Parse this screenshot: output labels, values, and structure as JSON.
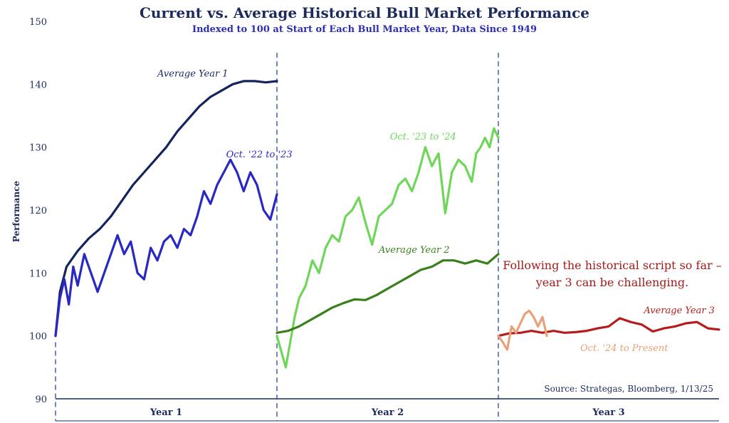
{
  "chart_data": {
    "type": "line",
    "title": "Current vs. Average Historical Bull Market Performance",
    "subtitle": "Indexed to 100 at Start of Each Bull Market Year, Data Since 1949",
    "ylabel": "Performance",
    "ylim": [
      90,
      150
    ],
    "yticks": [
      90,
      100,
      110,
      120,
      130,
      140,
      150
    ],
    "periods": [
      "Year 1",
      "Year 2",
      "Year 3"
    ],
    "annotation": "Following the historical script so far – year 3 can be challenging.",
    "source": "Source: Strategas, Bloomberg, 1/13/25",
    "x_note": "x = fraction of the bull-market year elapsed (0 to 1)",
    "series": [
      {
        "name": "Average Year 1",
        "period": 0,
        "color": "#16245e",
        "x": [
          0,
          0.02,
          0.05,
          0.1,
          0.15,
          0.2,
          0.25,
          0.3,
          0.35,
          0.4,
          0.45,
          0.5,
          0.55,
          0.6,
          0.65,
          0.7,
          0.75,
          0.8,
          0.85,
          0.9,
          0.95,
          1.0
        ],
        "y": [
          100,
          107,
          111,
          113.5,
          115.5,
          117,
          119,
          121.5,
          124,
          126,
          128,
          130,
          132.5,
          134.5,
          136.5,
          138,
          139,
          140,
          140.5,
          140.5,
          140.3,
          140.5
        ]
      },
      {
        "name": "Oct. '22 to '23",
        "period": 0,
        "color": "#2a28c2",
        "x": [
          0,
          0.02,
          0.04,
          0.06,
          0.08,
          0.1,
          0.13,
          0.16,
          0.19,
          0.22,
          0.25,
          0.28,
          0.31,
          0.34,
          0.37,
          0.4,
          0.43,
          0.46,
          0.49,
          0.52,
          0.55,
          0.58,
          0.61,
          0.64,
          0.67,
          0.7,
          0.73,
          0.76,
          0.79,
          0.82,
          0.85,
          0.88,
          0.91,
          0.94,
          0.97,
          1.0
        ],
        "y": [
          100,
          106,
          109,
          105,
          111,
          108,
          113,
          110,
          107,
          110,
          113,
          116,
          113,
          115,
          110,
          109,
          114,
          112,
          115,
          116,
          114,
          117,
          116,
          119,
          123,
          121,
          124,
          126,
          128,
          126,
          123,
          126,
          124,
          120,
          118.5,
          122.5
        ]
      },
      {
        "name": "Oct. '23 to '24",
        "period": 1,
        "color": "#6fd65a",
        "x": [
          0,
          0.02,
          0.04,
          0.06,
          0.08,
          0.1,
          0.13,
          0.16,
          0.19,
          0.22,
          0.25,
          0.28,
          0.31,
          0.34,
          0.37,
          0.4,
          0.43,
          0.46,
          0.49,
          0.52,
          0.55,
          0.58,
          0.61,
          0.64,
          0.67,
          0.7,
          0.73,
          0.76,
          0.79,
          0.82,
          0.85,
          0.88,
          0.9,
          0.92,
          0.94,
          0.96,
          0.98,
          1.0
        ],
        "y": [
          100,
          97.5,
          95,
          99,
          103,
          106,
          108,
          112,
          110,
          114,
          116,
          115,
          119,
          120,
          122,
          118,
          114.5,
          119,
          120,
          121,
          124,
          125,
          123,
          126,
          130,
          127,
          129,
          119.5,
          126,
          128,
          127,
          124.5,
          129,
          130,
          131.5,
          130,
          133,
          131.5
        ]
      },
      {
        "name": "Average Year 2",
        "period": 1,
        "color": "#3a7f1c",
        "x": [
          0,
          0.05,
          0.1,
          0.15,
          0.2,
          0.25,
          0.3,
          0.35,
          0.4,
          0.45,
          0.5,
          0.55,
          0.6,
          0.65,
          0.7,
          0.75,
          0.8,
          0.85,
          0.9,
          0.95,
          1.0
        ],
        "y": [
          100.5,
          100.8,
          101.5,
          102.5,
          103.5,
          104.5,
          105.2,
          105.8,
          105.7,
          106.5,
          107.5,
          108.5,
          109.5,
          110.5,
          111,
          112,
          112,
          111.5,
          112,
          111.5,
          113
        ]
      },
      {
        "name": "Average Year 3",
        "period": 2,
        "color": "#b71c1c",
        "x": [
          0,
          0.05,
          0.1,
          0.15,
          0.2,
          0.25,
          0.3,
          0.35,
          0.4,
          0.45,
          0.5,
          0.55,
          0.6,
          0.65,
          0.7,
          0.75,
          0.8,
          0.85,
          0.9,
          0.95,
          1.0
        ],
        "y": [
          100,
          100.4,
          100.5,
          100.8,
          100.5,
          100.8,
          100.5,
          100.6,
          100.8,
          101.2,
          101.5,
          102.8,
          102.2,
          101.8,
          100.7,
          101.2,
          101.5,
          102,
          102.2,
          101.2,
          101
        ]
      },
      {
        "name": "Oct. '24 to Present",
        "period": 2,
        "color": "#e8a27a",
        "x": [
          0,
          0.02,
          0.04,
          0.06,
          0.08,
          0.1,
          0.12,
          0.14,
          0.16,
          0.18,
          0.2,
          0.22
        ],
        "y": [
          100,
          99,
          97.8,
          101.5,
          100.5,
          102,
          103.5,
          104,
          103,
          101.5,
          103,
          100
        ]
      }
    ],
    "series_label_values": {
      "Average Year 1": [
        0.62,
        141.2
      ],
      "Oct. '22 to '23": [
        0.92,
        128.4
      ],
      "Oct. '23 to '24": [
        0.66,
        131.2
      ],
      "Average Year 2": [
        0.62,
        113.2
      ],
      "Average Year 3": [
        0.82,
        103.6
      ],
      "Oct. '24 to Present": [
        0.57,
        97.6
      ]
    }
  }
}
